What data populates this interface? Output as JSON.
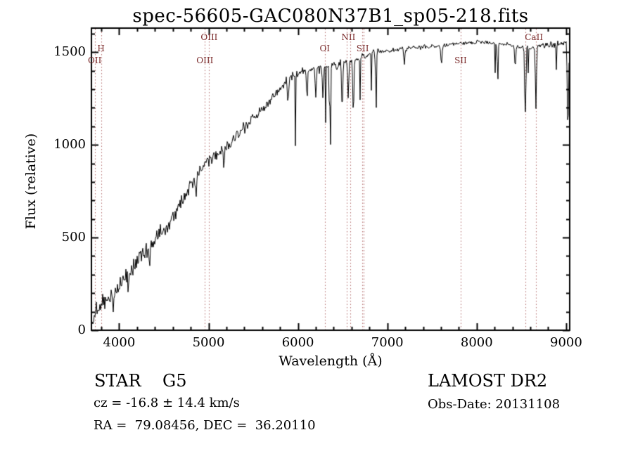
{
  "footer": {
    "class_label": "STAR    G5",
    "survey": "LAMOST DR2",
    "cz": "cz = -16.8 ± 14.4 km/s",
    "obs_date": "Obs-Date: 20131108",
    "coords": "RA =  79.08456, DEC =  36.20110"
  },
  "chart_data": {
    "type": "line",
    "title": "spec-56605-GAC080N37B1_sp05-218.fits",
    "xlabel": "Wavelength (Å)",
    "ylabel": "Flux (relative)",
    "xlim": [
      3690,
      9040
    ],
    "ylim": [
      0,
      1630
    ],
    "xticks": [
      4000,
      5000,
      6000,
      7000,
      8000,
      9000
    ],
    "yticks": [
      0,
      500,
      1000,
      1500
    ],
    "grid": false,
    "legend": null,
    "line_color": "#000000",
    "marker_line_color": "#b36b6b",
    "marker_label_color": "#7a2a2a",
    "marker_lines": [
      3727,
      3797,
      4959,
      5007,
      6300,
      6548,
      6583,
      6717,
      6731,
      7820,
      8542,
      8662
    ],
    "line_labels": [
      {
        "text": "H",
        "wavelength": 3797,
        "row": 1
      },
      {
        "text": "OII",
        "wavelength": 3727,
        "row": 2
      },
      {
        "text": "OIII",
        "wavelength": 5007,
        "row": 0
      },
      {
        "text": "OIII",
        "wavelength": 4959,
        "row": 2
      },
      {
        "text": "NII",
        "wavelength": 6565,
        "row": 0
      },
      {
        "text": "OI",
        "wavelength": 6300,
        "row": 1
      },
      {
        "text": "SII",
        "wavelength": 6724,
        "row": 1
      },
      {
        "text": "SII",
        "wavelength": 7820,
        "row": 2
      },
      {
        "text": "CaII",
        "wavelength": 8640,
        "row": 0
      }
    ],
    "continuum": [
      [
        3690,
        25
      ],
      [
        3740,
        110
      ],
      [
        3800,
        150
      ],
      [
        3870,
        170
      ],
      [
        3950,
        205
      ],
      [
        4050,
        270
      ],
      [
        4150,
        335
      ],
      [
        4250,
        400
      ],
      [
        4350,
        455
      ],
      [
        4450,
        520
      ],
      [
        4550,
        565
      ],
      [
        4650,
        650
      ],
      [
        4750,
        740
      ],
      [
        4850,
        820
      ],
      [
        4950,
        895
      ],
      [
        5050,
        935
      ],
      [
        5150,
        960
      ],
      [
        5250,
        1010
      ],
      [
        5350,
        1065
      ],
      [
        5450,
        1115
      ],
      [
        5550,
        1165
      ],
      [
        5650,
        1220
      ],
      [
        5750,
        1280
      ],
      [
        5850,
        1330
      ],
      [
        5950,
        1370
      ],
      [
        6050,
        1395
      ],
      [
        6150,
        1405
      ],
      [
        6250,
        1415
      ],
      [
        6350,
        1420
      ],
      [
        6450,
        1430
      ],
      [
        6550,
        1445
      ],
      [
        6650,
        1460
      ],
      [
        6750,
        1480
      ],
      [
        6850,
        1500
      ],
      [
        6950,
        1505
      ],
      [
        7050,
        1510
      ],
      [
        7150,
        1515
      ],
      [
        7250,
        1520
      ],
      [
        7350,
        1525
      ],
      [
        7450,
        1530
      ],
      [
        7550,
        1535
      ],
      [
        7650,
        1540
      ],
      [
        7750,
        1545
      ],
      [
        7850,
        1550
      ],
      [
        7950,
        1552
      ],
      [
        8050,
        1555
      ],
      [
        8150,
        1552
      ],
      [
        8250,
        1548
      ],
      [
        8350,
        1542
      ],
      [
        8450,
        1532
      ],
      [
        8550,
        1522
      ],
      [
        8650,
        1525
      ],
      [
        8750,
        1535
      ],
      [
        8850,
        1542
      ],
      [
        8950,
        1548
      ],
      [
        9040,
        1555
      ]
    ],
    "noise_profile": [
      [
        3690,
        55
      ],
      [
        4000,
        58
      ],
      [
        4300,
        60
      ],
      [
        4600,
        50
      ],
      [
        4900,
        42
      ],
      [
        5200,
        40
      ],
      [
        5500,
        36
      ],
      [
        5800,
        30
      ],
      [
        6100,
        32
      ],
      [
        6400,
        30
      ],
      [
        6700,
        24
      ],
      [
        7000,
        16
      ],
      [
        7400,
        13
      ],
      [
        7800,
        12
      ],
      [
        8200,
        13
      ],
      [
        8600,
        16
      ],
      [
        9040,
        22
      ]
    ],
    "absorption_features": [
      {
        "wl": 3934,
        "depth": 110,
        "width": 6
      },
      {
        "wl": 4101,
        "depth": 100,
        "width": 6
      },
      {
        "wl": 4340,
        "depth": 110,
        "width": 6
      },
      {
        "wl": 4861,
        "depth": 140,
        "width": 6
      },
      {
        "wl": 5172,
        "depth": 90,
        "width": 6
      },
      {
        "wl": 5890,
        "depth": 120,
        "width": 6
      },
      {
        "wl": 6103,
        "depth": 170,
        "width": 5
      },
      {
        "wl": 6200,
        "depth": 140,
        "width": 5
      },
      {
        "wl": 6280,
        "depth": 150,
        "width": 5
      },
      {
        "wl": 6360,
        "depth": 230,
        "width": 5
      },
      {
        "wl": 6495,
        "depth": 250,
        "width": 5
      },
      {
        "wl": 6563,
        "depth": 190,
        "width": 5
      },
      {
        "wl": 6620,
        "depth": 280,
        "width": 5
      },
      {
        "wl": 6870,
        "depth": 130,
        "width": 7
      },
      {
        "wl": 7190,
        "depth": 80,
        "width": 7
      },
      {
        "wl": 7605,
        "depth": 100,
        "width": 7
      },
      {
        "wl": 8230,
        "depth": 90,
        "width": 6
      },
      {
        "wl": 8430,
        "depth": 110,
        "width": 6
      },
      {
        "wl": 8542,
        "depth": 370,
        "width": 6
      },
      {
        "wl": 8662,
        "depth": 330,
        "width": 6
      },
      {
        "wl": 9020,
        "depth": 480,
        "width": 7
      }
    ],
    "noise_seed": 20131108
  }
}
